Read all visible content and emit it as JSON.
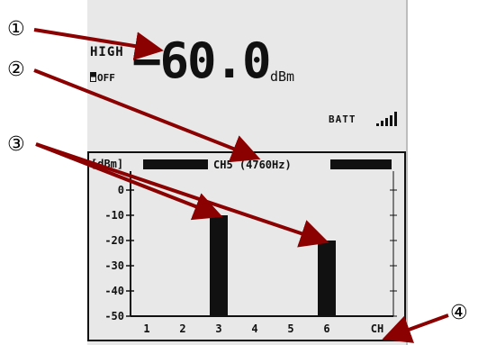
{
  "display": {
    "mode": "HIGH",
    "hold": "OFF",
    "reading": "−60.0",
    "unit": "dBm",
    "battery": "BATT"
  },
  "annotations": [
    "①",
    "②",
    "③",
    "④"
  ],
  "chart_data": {
    "type": "bar",
    "unit_label": "[dBm]",
    "header": "CH5 (4760Hz)",
    "categories": [
      "1",
      "2",
      "3",
      "4",
      "5",
      "6"
    ],
    "x_label": "CH",
    "values": [
      null,
      null,
      -10,
      null,
      null,
      -20
    ],
    "y_ticks": [
      "0",
      "-10",
      "-20",
      "-30",
      "-40",
      "-50"
    ],
    "ylim": [
      -50,
      0
    ]
  },
  "colors": {
    "lcd_background": "#e8e8e8",
    "lcd_ink": "#111111",
    "arrow": "#8b0000"
  }
}
